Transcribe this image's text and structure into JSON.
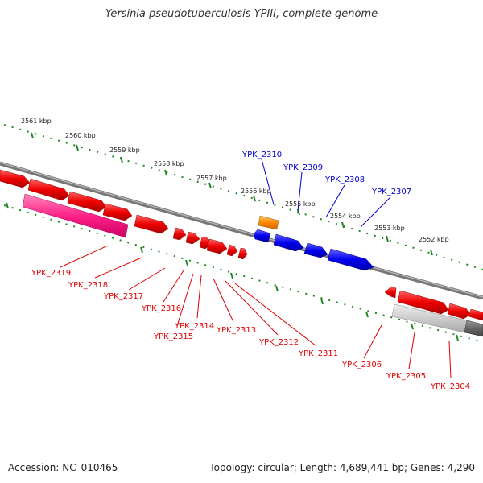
{
  "title": "Yersinia pseudotuberculosis YPIII, complete genome",
  "footer": {
    "accession": "Accession: NC_010465",
    "topology": "Topology: circular; Length: 4,689,441 bp; Genes: 4,290"
  },
  "colors": {
    "forward_gene": "#ff0000",
    "reverse_gene": "#0000ff",
    "rna_gene": "#ff8800",
    "highlight": "#ff2288",
    "backbone": "#777777",
    "ticks": "#228822"
  },
  "ruler": [
    "2561 kbp",
    "2560 kbp",
    "2559 kbp",
    "2558 kbp",
    "2557 kbp",
    "2556 kbp",
    "2555 kbp",
    "2554 kbp",
    "2553 kbp",
    "2552 kbp"
  ],
  "labels_top": [
    "YPK_2310",
    "YPK_2309",
    "YPK_2308",
    "YPK_2307"
  ],
  "labels_bottom": [
    "YPK_2319",
    "YPK_2318",
    "YPK_2317",
    "YPK_2316",
    "YPK_2315",
    "YPK_2314",
    "YPK_2313",
    "YPK_2312",
    "YPK_2311",
    "YPK_2306",
    "YPK_2305",
    "YPK_2304"
  ]
}
